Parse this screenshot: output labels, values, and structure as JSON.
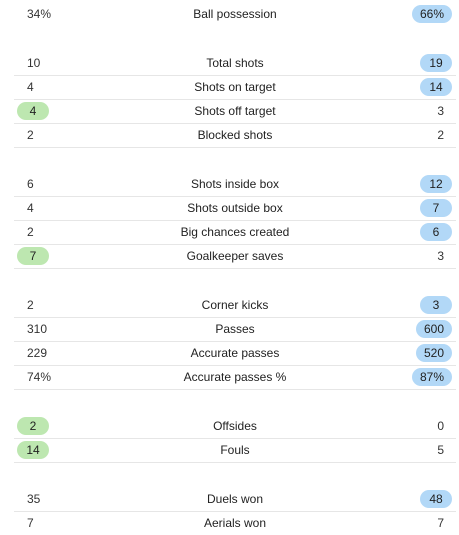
{
  "stats": [
    {
      "label": "Ball possession",
      "home": "34%",
      "away": "66%",
      "highlight": "away"
    },
    {
      "label": "Total shots",
      "home": "10",
      "away": "19",
      "highlight": "away"
    },
    {
      "label": "Shots on target",
      "home": "4",
      "away": "14",
      "highlight": "away"
    },
    {
      "label": "Shots off target",
      "home": "4",
      "away": "3",
      "highlight": "home"
    },
    {
      "label": "Blocked shots",
      "home": "2",
      "away": "2",
      "highlight": "none"
    },
    {
      "label": "Shots inside box",
      "home": "6",
      "away": "12",
      "highlight": "away"
    },
    {
      "label": "Shots outside box",
      "home": "4",
      "away": "7",
      "highlight": "away"
    },
    {
      "label": "Big chances created",
      "home": "2",
      "away": "6",
      "highlight": "away"
    },
    {
      "label": "Goalkeeper saves",
      "home": "7",
      "away": "3",
      "highlight": "home"
    },
    {
      "label": "Corner kicks",
      "home": "2",
      "away": "3",
      "highlight": "away"
    },
    {
      "label": "Passes",
      "home": "310",
      "away": "600",
      "highlight": "away"
    },
    {
      "label": "Accurate passes",
      "home": "229",
      "away": "520",
      "highlight": "away"
    },
    {
      "label": "Accurate passes %",
      "home": "74%",
      "away": "87%",
      "highlight": "away"
    },
    {
      "label": "Offsides",
      "home": "2",
      "away": "0",
      "highlight": "home"
    },
    {
      "label": "Fouls",
      "home": "14",
      "away": "5",
      "highlight": "home"
    },
    {
      "label": "Duels won",
      "home": "35",
      "away": "48",
      "highlight": "away"
    },
    {
      "label": "Aerials won",
      "home": "7",
      "away": "7",
      "highlight": "none"
    }
  ],
  "colors": {
    "home_highlight": "#bde7b0",
    "away_highlight": "#b2d8f7"
  }
}
